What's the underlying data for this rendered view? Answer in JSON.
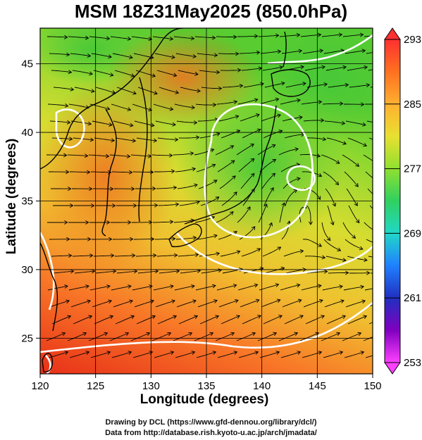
{
  "title": "MSM 18Z31May2025 (850.0hPa)",
  "axes": {
    "xlabel": "Longitude (degrees)",
    "ylabel": "Latitude  (degrees)",
    "x_ticks": [
      "120",
      "125",
      "130",
      "135",
      "140",
      "145",
      "150"
    ],
    "y_ticks": [
      "25",
      "30",
      "35",
      "40",
      "45"
    ],
    "x_range": [
      120,
      150
    ],
    "y_range": [
      22.4,
      47.6
    ]
  },
  "colorbar": {
    "labels": [
      "293",
      "285",
      "277",
      "269",
      "261",
      "253"
    ],
    "range": [
      253,
      293
    ],
    "colors": [
      "#ff3030",
      "#ff7020",
      "#ffb030",
      "#e8e030",
      "#90e030",
      "#30d060",
      "#20d8c8",
      "#2080ff",
      "#2030c0",
      "#8000c0",
      "#ff40ff"
    ]
  },
  "credits": {
    "line1": "Drawing by DCL (https://www.gfd-dennou.org/library/dcl/)",
    "line2": "Data from http://database.rish.kyoto-u.ac.jp/arch/jmadata/"
  }
}
